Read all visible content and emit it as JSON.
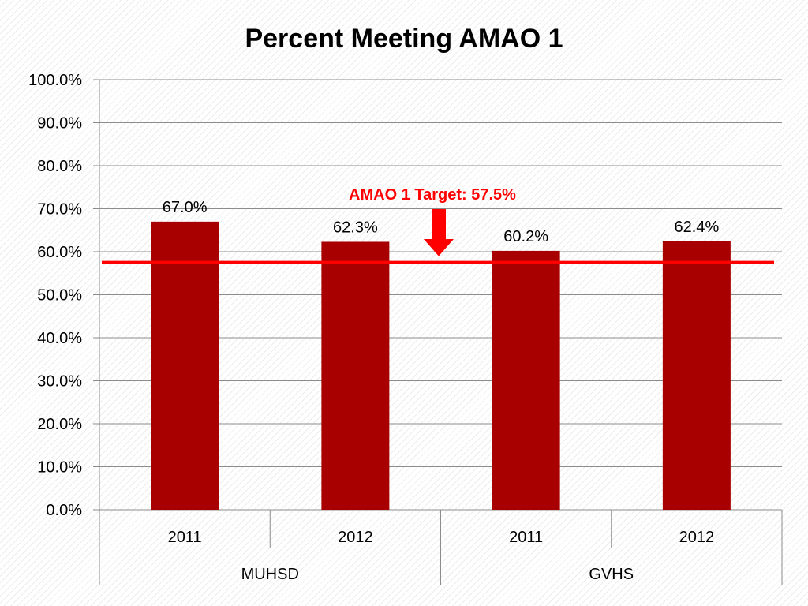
{
  "chart_data": {
    "type": "bar",
    "title": "Percent Meeting AMAO 1",
    "groups": [
      {
        "name": "MUHSD",
        "categories": [
          "2011",
          "2012"
        ]
      },
      {
        "name": "GVHS",
        "categories": [
          "2011",
          "2012"
        ]
      }
    ],
    "categories": [
      "2011",
      "2012",
      "2011",
      "2012"
    ],
    "values": [
      67.0,
      62.3,
      60.2,
      62.4
    ],
    "value_labels": [
      "67.0%",
      "62.3%",
      "60.2%",
      "62.4%"
    ],
    "ylim": [
      0,
      100
    ],
    "yticks": [
      0,
      10,
      20,
      30,
      40,
      50,
      60,
      70,
      80,
      90,
      100
    ],
    "ytick_labels": [
      "0.0%",
      "10.0%",
      "20.0%",
      "30.0%",
      "40.0%",
      "50.0%",
      "60.0%",
      "70.0%",
      "80.0%",
      "90.0%",
      "100.0%"
    ],
    "grid": true,
    "legend": "none",
    "target": {
      "value": 57.5,
      "label": "AMAO 1 Target: 57.5%"
    },
    "colors": {
      "bar": "#a80000",
      "target": "#ff0000",
      "grid": "#8c8c8c",
      "text": "#000000"
    }
  }
}
